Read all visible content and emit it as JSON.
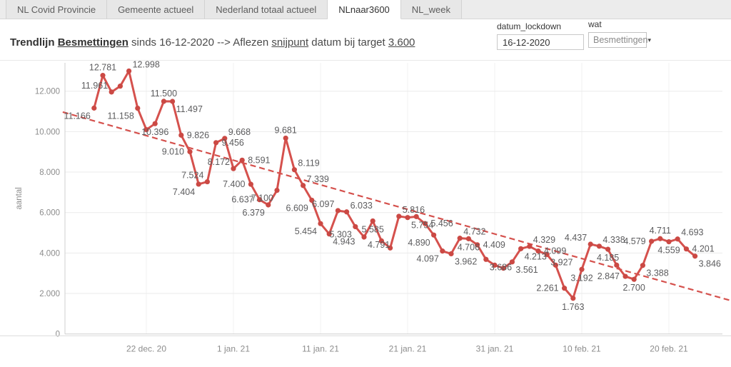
{
  "tabs": {
    "items": [
      {
        "label": "NL Covid Provincie",
        "active": false
      },
      {
        "label": "Gemeente actueel",
        "active": false
      },
      {
        "label": "Nederland totaal actueel",
        "active": false
      },
      {
        "label": "NLnaar3600",
        "active": true
      },
      {
        "label": "NL_week",
        "active": false
      }
    ]
  },
  "header": {
    "title_segments": [
      {
        "text": "Trendlijn ",
        "bold": true,
        "underline": false
      },
      {
        "text": "Besmettingen",
        "bold": true,
        "underline": true
      },
      {
        "text": " sinds 16-12-2020 --> Aflezen ",
        "bold": false,
        "underline": false
      },
      {
        "text": "snijpunt",
        "bold": false,
        "underline": true
      },
      {
        "text": " datum bij target ",
        "bold": false,
        "underline": false
      },
      {
        "text": "3.600",
        "bold": false,
        "underline": true
      }
    ],
    "controls": {
      "datum_lockdown": {
        "label": "datum_lockdown",
        "value": "16-12-2020"
      },
      "wat": {
        "label": "wat",
        "value": "Besmettingen",
        "caret_icon": "▾"
      }
    }
  },
  "chart_data": {
    "type": "line",
    "title": "",
    "xlabel": "",
    "ylabel": "aantal",
    "ylim": [
      0,
      13500
    ],
    "grid": true,
    "legend": "none",
    "target_value": 3600,
    "colors": {
      "line": "#d5514d",
      "marker": "#cb4944",
      "trendline": "#d5514d",
      "gridline": "#ebebeb",
      "axis": "#cfcfcf",
      "tick_text": "#8c8c8c",
      "data_label": "#5c5c5e"
    },
    "y_ticks": [
      {
        "value": 0,
        "label": "0"
      },
      {
        "value": 2000,
        "label": "2.000"
      },
      {
        "value": 4000,
        "label": "4.000"
      },
      {
        "value": 6000,
        "label": "6.000"
      },
      {
        "value": 8000,
        "label": "8.000"
      },
      {
        "value": 10000,
        "label": "10.000"
      },
      {
        "value": 12000,
        "label": "12.000"
      }
    ],
    "x_ticks": [
      {
        "day": 6,
        "label": "22 dec. 20"
      },
      {
        "day": 16,
        "label": "1 jan. 21"
      },
      {
        "day": 26,
        "label": "11 jan. 21"
      },
      {
        "day": 36,
        "label": "21 jan. 21"
      },
      {
        "day": 46,
        "label": "31 jan. 21"
      },
      {
        "day": 56,
        "label": "10 feb. 21"
      },
      {
        "day": 66,
        "label": "20 feb. 21"
      }
    ],
    "points": [
      {
        "date": "16-12-2020",
        "value": 11166,
        "label": "11.166",
        "label_pos": "below-left"
      },
      {
        "date": "17-12-2020",
        "value": 12781,
        "label": "12.781",
        "label_pos": "above"
      },
      {
        "date": "18-12-2020",
        "value": 11961,
        "label": "11.961",
        "label_pos": "above-left"
      },
      {
        "date": "19-12-2020",
        "value": 12250,
        "label": null,
        "label_pos": null
      },
      {
        "date": "20-12-2020",
        "value": 12998,
        "label": "12.998",
        "label_pos": "above-right"
      },
      {
        "date": "21-12-2020",
        "value": 11158,
        "label": "11.158",
        "label_pos": "below-left"
      },
      {
        "date": "22-12-2020",
        "value": 10100,
        "label": null,
        "label_pos": null
      },
      {
        "date": "23-12-2020",
        "value": 10396,
        "label": "10.396",
        "label_pos": "below"
      },
      {
        "date": "24-12-2020",
        "value": 11500,
        "label": "11.500",
        "label_pos": "above"
      },
      {
        "date": "25-12-2020",
        "value": 11497,
        "label": "11.497",
        "label_pos": "below-right"
      },
      {
        "date": "26-12-2020",
        "value": 9826,
        "label": "9.826",
        "label_pos": "right"
      },
      {
        "date": "27-12-2020",
        "value": 9010,
        "label": "9.010",
        "label_pos": "left"
      },
      {
        "date": "28-12-2020",
        "value": 7404,
        "label": "7.404",
        "label_pos": "below-left"
      },
      {
        "date": "29-12-2020",
        "value": 7524,
        "label": "7.524",
        "label_pos": "above-left"
      },
      {
        "date": "30-12-2020",
        "value": 9456,
        "label": "9.456",
        "label_pos": "right"
      },
      {
        "date": "31-12-2020",
        "value": 9668,
        "label": "9.668",
        "label_pos": "above-right"
      },
      {
        "date": "01-01-2021",
        "value": 8172,
        "label": "8.172",
        "label_pos": "above-left"
      },
      {
        "date": "02-01-2021",
        "value": 8591,
        "label": "8.591",
        "label_pos": "right"
      },
      {
        "date": "03-01-2021",
        "value": 7400,
        "label": "7.400",
        "label_pos": "left"
      },
      {
        "date": "04-01-2021",
        "value": 6637,
        "label": "6.637",
        "label_pos": "left"
      },
      {
        "date": "05-01-2021",
        "value": 6379,
        "label": "6.379",
        "label_pos": "below-left"
      },
      {
        "date": "06-01-2021",
        "value": 7100,
        "label": "7.100",
        "label_pos": "below-left"
      },
      {
        "date": "07-01-2021",
        "value": 9681,
        "label": "9.681",
        "label_pos": "above"
      },
      {
        "date": "08-01-2021",
        "value": 8119,
        "label": "8.119",
        "label_pos": "above-right"
      },
      {
        "date": "09-01-2021",
        "value": 7339,
        "label": "7.339",
        "label_pos": "above-right"
      },
      {
        "date": "10-01-2021",
        "value": 6609,
        "label": "6.609",
        "label_pos": "below-left"
      },
      {
        "date": "11-01-2021",
        "value": 5454,
        "label": "5.454",
        "label_pos": "below-left"
      },
      {
        "date": "12-01-2021",
        "value": 4943,
        "label": "4.943",
        "label_pos": "below-right"
      },
      {
        "date": "13-01-2021",
        "value": 6097,
        "label": "6.097",
        "label_pos": "above-left"
      },
      {
        "date": "14-01-2021",
        "value": 6033,
        "label": "6.033",
        "label_pos": "above-right"
      },
      {
        "date": "15-01-2021",
        "value": 5303,
        "label": "5.303",
        "label_pos": "below-left"
      },
      {
        "date": "16-01-2021",
        "value": 4791,
        "label": "4.791",
        "label_pos": "below-right"
      },
      {
        "date": "17-01-2021",
        "value": 5585,
        "label": "5.585",
        "label_pos": "below"
      },
      {
        "date": "18-01-2021",
        "value": 4600,
        "label": null,
        "label_pos": null
      },
      {
        "date": "19-01-2021",
        "value": 4250,
        "label": null,
        "label_pos": null
      },
      {
        "date": "20-01-2021",
        "value": 5816,
        "label": "5.816",
        "label_pos": "above-right"
      },
      {
        "date": "21-01-2021",
        "value": 5754,
        "label": "5.754",
        "label_pos": "below-right"
      },
      {
        "date": "22-01-2021",
        "value": 5800,
        "label": null,
        "label_pos": null
      },
      {
        "date": "23-01-2021",
        "value": 5456,
        "label": "5.456",
        "label_pos": "right"
      },
      {
        "date": "24-01-2021",
        "value": 4890,
        "label": "4.890",
        "label_pos": "below-left"
      },
      {
        "date": "25-01-2021",
        "value": 4097,
        "label": "4.097",
        "label_pos": "below-left"
      },
      {
        "date": "26-01-2021",
        "value": 3962,
        "label": "3.962",
        "label_pos": "below-right"
      },
      {
        "date": "27-01-2021",
        "value": 4732,
        "label": "4.732",
        "label_pos": "above-right"
      },
      {
        "date": "28-01-2021",
        "value": 4706,
        "label": "4.706",
        "label_pos": "below"
      },
      {
        "date": "29-01-2021",
        "value": 4409,
        "label": "4.409",
        "label_pos": "right"
      },
      {
        "date": "30-01-2021",
        "value": 3686,
        "label": "3.686",
        "label_pos": "below-right"
      },
      {
        "date": "31-01-2021",
        "value": 3400,
        "label": null,
        "label_pos": null
      },
      {
        "date": "01-02-2021",
        "value": 3250,
        "label": null,
        "label_pos": null
      },
      {
        "date": "02-02-2021",
        "value": 3561,
        "label": "3.561",
        "label_pos": "below-right"
      },
      {
        "date": "03-02-2021",
        "value": 4213,
        "label": "4.213",
        "label_pos": "below-right"
      },
      {
        "date": "04-02-2021",
        "value": 4329,
        "label": "4.329",
        "label_pos": "above-right"
      },
      {
        "date": "05-02-2021",
        "value": 4099,
        "label": "4.099",
        "label_pos": "right"
      },
      {
        "date": "06-02-2021",
        "value": 3927,
        "label": "3.927",
        "label_pos": "below-right"
      },
      {
        "date": "07-02-2021",
        "value": 3400,
        "label": null,
        "label_pos": null
      },
      {
        "date": "08-02-2021",
        "value": 2261,
        "label": "2.261",
        "label_pos": "left"
      },
      {
        "date": "09-02-2021",
        "value": 1763,
        "label": "1.763",
        "label_pos": "below"
      },
      {
        "date": "10-02-2021",
        "value": 3192,
        "label": "3.192",
        "label_pos": "below"
      },
      {
        "date": "11-02-2021",
        "value": 4437,
        "label": "4.437",
        "label_pos": "above-left"
      },
      {
        "date": "12-02-2021",
        "value": 4338,
        "label": "4.338",
        "label_pos": "above-right"
      },
      {
        "date": "13-02-2021",
        "value": 4185,
        "label": "4.185",
        "label_pos": "below"
      },
      {
        "date": "14-02-2021",
        "value": 3400,
        "label": null,
        "label_pos": null
      },
      {
        "date": "15-02-2021",
        "value": 2847,
        "label": "2.847",
        "label_pos": "left"
      },
      {
        "date": "16-02-2021",
        "value": 2700,
        "label": "2.700",
        "label_pos": "below"
      },
      {
        "date": "17-02-2021",
        "value": 3388,
        "label": "3.388",
        "label_pos": "below-right"
      },
      {
        "date": "18-02-2021",
        "value": 4579,
        "label": "4.579",
        "label_pos": "left"
      },
      {
        "date": "19-02-2021",
        "value": 4711,
        "label": "4.711",
        "label_pos": "above"
      },
      {
        "date": "20-02-2021",
        "value": 4559,
        "label": "4.559",
        "label_pos": "below"
      },
      {
        "date": "21-02-2021",
        "value": 4693,
        "label": "4.693",
        "label_pos": "above-right"
      },
      {
        "date": "22-02-2021",
        "value": 4201,
        "label": "4.201",
        "label_pos": "right"
      },
      {
        "date": "23-02-2021",
        "value": 3846,
        "label": "3.846",
        "label_pos": "below-right"
      }
    ],
    "trendline": {
      "style": "dashed",
      "start": {
        "day": -3.6,
        "value": 10970
      },
      "end": {
        "day": 73.1,
        "value": 1650
      }
    }
  }
}
